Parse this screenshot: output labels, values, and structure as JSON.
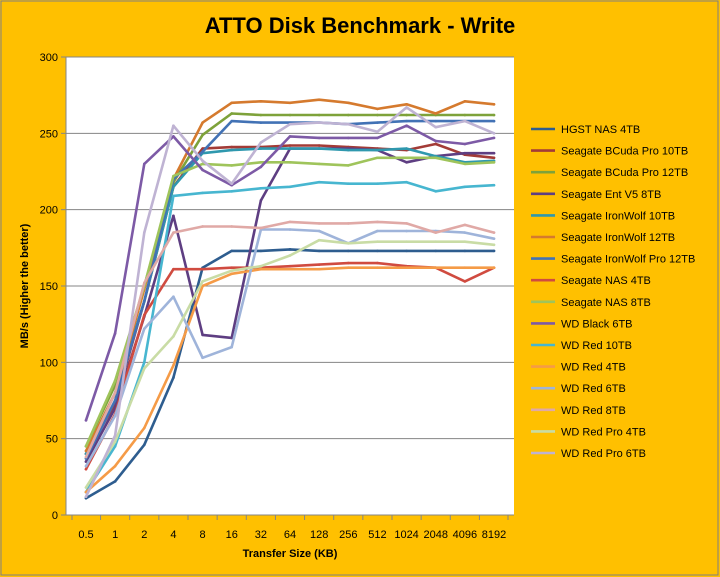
{
  "chart_data": {
    "type": "line",
    "title": "ATTO Disk Benchmark - Write",
    "xlabel": "Transfer Size (KB)",
    "ylabel": "MB/s (Higher the better)",
    "ylim": [
      0,
      300
    ],
    "yticks": [
      0,
      50,
      100,
      150,
      200,
      250,
      300
    ],
    "grid": "horizontal",
    "legend_position": "right",
    "categories": [
      "0.5",
      "1",
      "2",
      "4",
      "8",
      "16",
      "32",
      "64",
      "128",
      "256",
      "512",
      "1024",
      "2048",
      "4096",
      "8192"
    ],
    "series": [
      {
        "name": "HGST NAS 4TB",
        "color": "#2E5D8F",
        "values": [
          11,
          22,
          46,
          90,
          162,
          173,
          173,
          174,
          173,
          173,
          173,
          173,
          173,
          173,
          173
        ]
      },
      {
        "name": "Seagate BCuda Pro 10TB",
        "color": "#A33B37",
        "values": [
          40,
          73,
          140,
          215,
          240,
          241,
          241,
          242,
          242,
          241,
          240,
          239,
          243,
          236,
          234
        ]
      },
      {
        "name": "Seagate BCuda Pro 12TB",
        "color": "#7EA23A",
        "values": [
          45,
          85,
          150,
          218,
          249,
          263,
          262,
          262,
          262,
          262,
          262,
          262,
          262,
          262,
          262
        ]
      },
      {
        "name": "Seagate Ent V5 8TB",
        "color": "#5E3E82",
        "values": [
          35,
          70,
          130,
          196,
          118,
          116,
          206,
          240,
          240,
          240,
          239,
          231,
          235,
          237,
          237
        ]
      },
      {
        "name": "Seagate IronWolf 10TB",
        "color": "#2F98AE",
        "values": [
          40,
          80,
          140,
          215,
          237,
          239,
          240,
          240,
          240,
          239,
          239,
          240,
          235,
          231,
          232
        ]
      },
      {
        "name": "Seagate IronWolf 12TB",
        "color": "#D57A2E",
        "values": [
          42,
          80,
          148,
          220,
          257,
          270,
          271,
          270,
          272,
          270,
          266,
          269,
          263,
          271,
          269
        ]
      },
      {
        "name": "Seagate IronWolf Pro 12TB",
        "color": "#4272B5",
        "values": [
          37,
          75,
          140,
          220,
          238,
          258,
          257,
          257,
          257,
          256,
          257,
          258,
          258,
          258,
          258
        ]
      },
      {
        "name": "Seagate NAS 4TB",
        "color": "#D04B40",
        "values": [
          30,
          66,
          131,
          161,
          161,
          162,
          162,
          163,
          164,
          165,
          165,
          163,
          162,
          153,
          162
        ]
      },
      {
        "name": "Seagate NAS 8TB",
        "color": "#9FC45B",
        "values": [
          45,
          88,
          150,
          222,
          230,
          229,
          231,
          231,
          230,
          229,
          234,
          234,
          234,
          230,
          231
        ]
      },
      {
        "name": "WD Black 6TB",
        "color": "#7D5AA6",
        "values": [
          62,
          119,
          230,
          248,
          226,
          216,
          228,
          248,
          247,
          247,
          247,
          255,
          245,
          243,
          247
        ]
      },
      {
        "name": "WD Red 10TB",
        "color": "#47B6D0",
        "values": [
          15,
          45,
          100,
          209,
          211,
          212,
          214,
          215,
          218,
          217,
          217,
          218,
          212,
          215,
          216
        ]
      },
      {
        "name": "WD Red 4TB",
        "color": "#F59B47",
        "values": [
          15,
          32,
          57,
          98,
          150,
          158,
          161,
          161,
          161,
          162,
          162,
          162,
          162,
          162,
          162
        ]
      },
      {
        "name": "WD Red 6TB",
        "color": "#9FB4DA",
        "values": [
          32,
          65,
          122,
          143,
          103,
          110,
          187,
          187,
          186,
          178,
          186,
          186,
          186,
          185,
          181
        ]
      },
      {
        "name": "WD Red 8TB",
        "color": "#E0A9A6",
        "values": [
          38,
          80,
          152,
          185,
          189,
          189,
          188,
          192,
          191,
          191,
          192,
          191,
          185,
          190,
          185
        ]
      },
      {
        "name": "WD Red Pro 4TB",
        "color": "#C9DCA5",
        "values": [
          18,
          48,
          96,
          117,
          153,
          160,
          163,
          170,
          180,
          178,
          179,
          179,
          179,
          179,
          177
        ]
      },
      {
        "name": "WD Red Pro 6TB",
        "color": "#BFB3D3",
        "values": [
          12,
          52,
          185,
          255,
          232,
          217,
          244,
          256,
          257,
          256,
          251,
          267,
          254,
          258,
          250
        ]
      }
    ]
  }
}
